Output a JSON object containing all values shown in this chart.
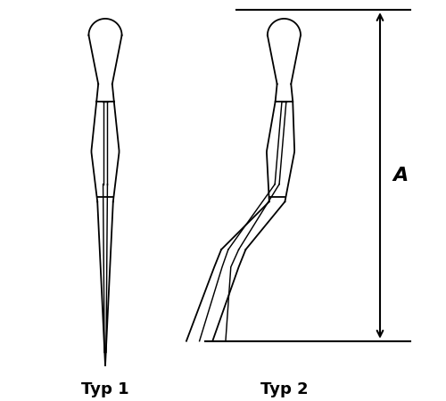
{
  "background_color": "#ffffff",
  "line_color": "#000000",
  "label_typ1": "Typ 1",
  "label_typ2": "Typ 2",
  "label_A": "A",
  "font_size_label": 13,
  "font_weight_label": "bold",
  "font_size_A": 16
}
